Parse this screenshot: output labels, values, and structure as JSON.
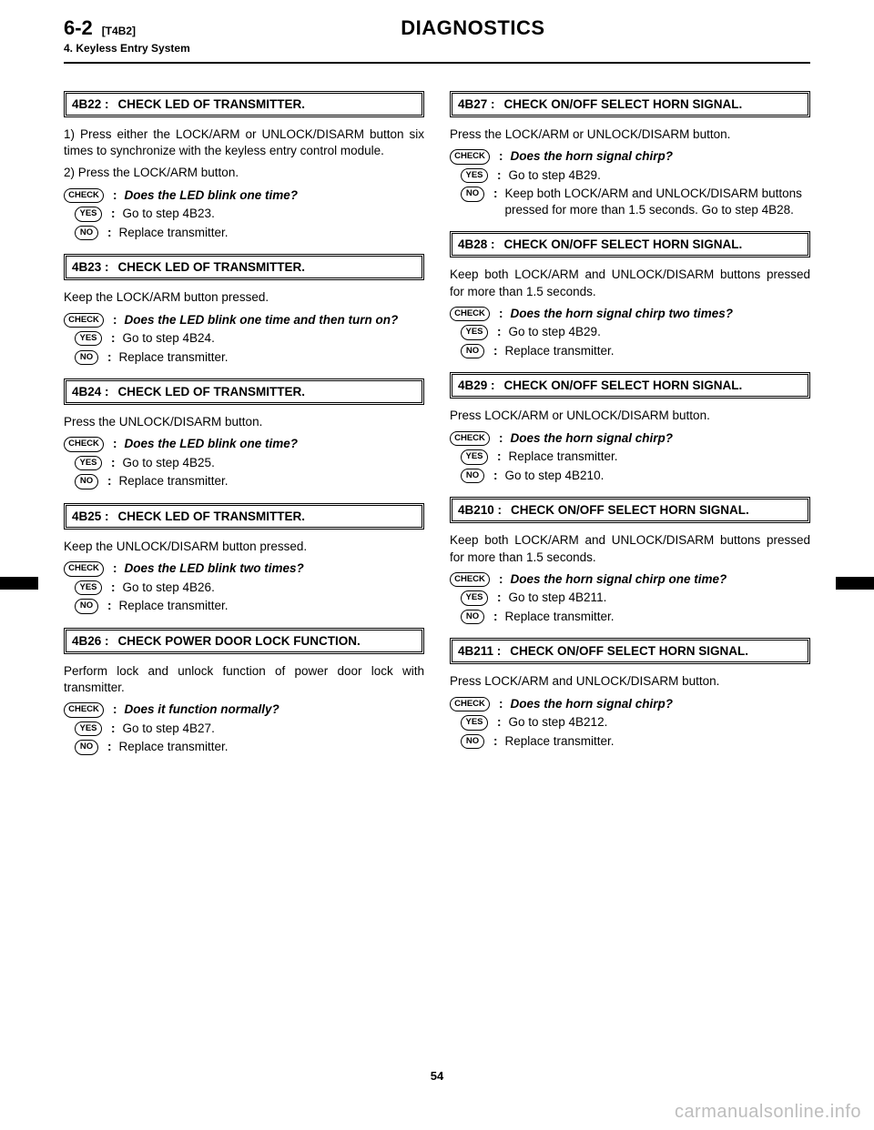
{
  "header": {
    "page_num": "6-2",
    "code": "[T4B2]",
    "sub": "4. Keyless Entry System",
    "title": "DIAGNOSTICS"
  },
  "badges": {
    "check": "CHECK",
    "yes": "YES",
    "no": "NO"
  },
  "left": {
    "s4b22": {
      "code": "4B22 :",
      "title": "CHECK LED OF TRANSMITTER.",
      "body1": "1) Press either the LOCK/ARM or UNLOCK/DISARM button six times to synchronize with the keyless entry control module.",
      "body2": "2) Press the LOCK/ARM button.",
      "check": "Does the LED blink one time?",
      "yes": "Go to step 4B23.",
      "no": "Replace transmitter."
    },
    "s4b23": {
      "code": "4B23 :",
      "title": "CHECK LED OF TRANSMITTER.",
      "body": "Keep the LOCK/ARM button pressed.",
      "check": "Does the LED blink one time and then turn on?",
      "yes": "Go to step 4B24.",
      "no": "Replace transmitter."
    },
    "s4b24": {
      "code": "4B24 :",
      "title": "CHECK LED OF TRANSMITTER.",
      "body": "Press the UNLOCK/DISARM button.",
      "check": "Does the LED blink one time?",
      "yes": "Go to step 4B25.",
      "no": "Replace transmitter."
    },
    "s4b25": {
      "code": "4B25 :",
      "title": "CHECK LED OF TRANSMITTER.",
      "body": "Keep the UNLOCK/DISARM button pressed.",
      "check": "Does the LED blink two times?",
      "yes": "Go to step 4B26.",
      "no": "Replace transmitter."
    },
    "s4b26": {
      "code": "4B26 :",
      "title": "CHECK POWER DOOR LOCK FUNCTION.",
      "body": "Perform lock and unlock function of power door lock with transmitter.",
      "check": "Does it function normally?",
      "yes": "Go to step 4B27.",
      "no": "Replace transmitter."
    }
  },
  "right": {
    "s4b27": {
      "code": "4B27 :",
      "title": "CHECK ON/OFF SELECT HORN SIGNAL.",
      "body": "Press the LOCK/ARM or UNLOCK/DISARM button.",
      "check": "Does the horn signal chirp?",
      "yes": "Go to step 4B29.",
      "no": "Keep both LOCK/ARM and UNLOCK/DISARM buttons pressed for more than 1.5 seconds. Go to step 4B28."
    },
    "s4b28": {
      "code": "4B28 :",
      "title": "CHECK ON/OFF SELECT HORN SIGNAL.",
      "body": "Keep both LOCK/ARM and UNLOCK/DISARM buttons pressed for more than 1.5 seconds.",
      "check": "Does the horn signal chirp two times?",
      "yes": "Go to step 4B29.",
      "no": "Replace transmitter."
    },
    "s4b29": {
      "code": "4B29 :",
      "title": "CHECK ON/OFF SELECT HORN SIGNAL.",
      "body": "Press LOCK/ARM or UNLOCK/DISARM button.",
      "check": "Does the horn signal chirp?",
      "yes": "Replace transmitter.",
      "no": "Go to step 4B210."
    },
    "s4b210": {
      "code": "4B210 :",
      "title": "CHECK ON/OFF SELECT HORN SIGNAL.",
      "body": "Keep both LOCK/ARM and UNLOCK/DISARM buttons pressed for more than 1.5 seconds.",
      "check": "Does the horn signal chirp one time?",
      "yes": "Go to step 4B211.",
      "no": "Replace transmitter."
    },
    "s4b211": {
      "code": "4B211 :",
      "title": "CHECK ON/OFF SELECT HORN SIGNAL.",
      "body": "Press LOCK/ARM and UNLOCK/DISARM button.",
      "check": "Does the horn signal chirp?",
      "yes": "Go to step 4B212.",
      "no": "Replace transmitter."
    }
  },
  "footer_num": "54",
  "watermark": "carmanualsonline.info"
}
